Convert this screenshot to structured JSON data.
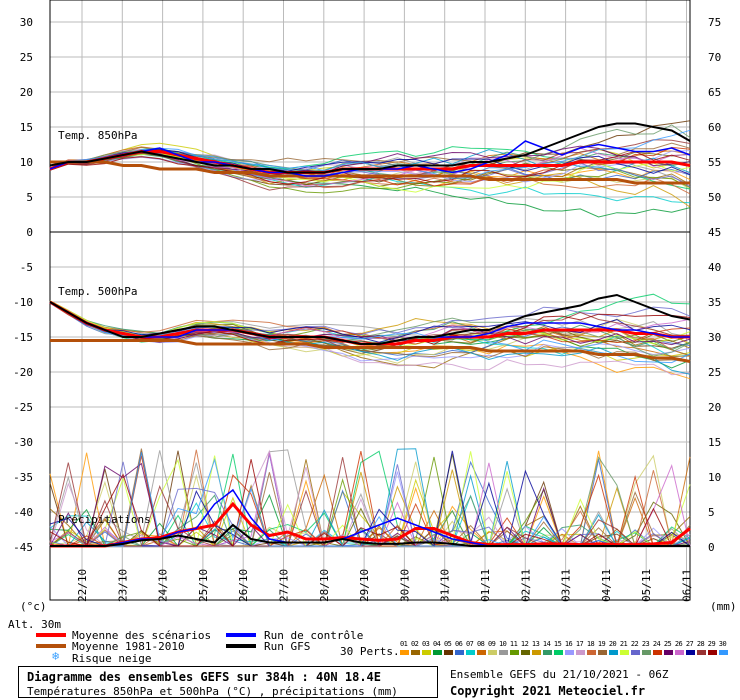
{
  "chart_data": {
    "type": "line",
    "panels": [
      {
        "title": "Temp. 850hPa",
        "series": [
          {
            "name": "Moyenne des scénarios",
            "color": "#ff0000",
            "values": [
              9,
              10,
              10,
              10.5,
              11,
              11.5,
              11.5,
              11,
              10.5,
              10,
              9.5,
              9,
              8.5,
              8.5,
              8.5,
              8.5,
              9,
              9,
              9,
              9,
              9,
              9,
              9,
              9.5,
              9.5,
              9.5,
              9.5,
              9.5,
              9.5,
              10,
              10,
              10,
              10,
              10,
              10,
              9.5
            ]
          },
          {
            "name": "Moyenne 1981-2010",
            "color": "#b4500a",
            "values": [
              10,
              10,
              10,
              10,
              9.5,
              9.5,
              9,
              9,
              9,
              8.5,
              8.5,
              8.5,
              8,
              8,
              8,
              8,
              8,
              8,
              8,
              8,
              8,
              8,
              8,
              8,
              7.5,
              7.5,
              7.5,
              7.5,
              7.5,
              7.5,
              7.5,
              7.5,
              7,
              7,
              7,
              7
            ]
          },
          {
            "name": "Run de contrôle",
            "color": "#0000ff",
            "values": [
              9,
              10,
              10,
              10.5,
              11,
              11.5,
              12,
              11,
              10,
              10,
              9.5,
              9,
              8.5,
              8.5,
              8,
              8,
              8.5,
              9,
              9,
              9,
              9.5,
              9,
              8.5,
              9,
              10,
              11,
              13,
              12,
              11,
              12,
              12.5,
              12,
              11.5,
              11.5,
              12,
              11
            ]
          },
          {
            "name": "Run GFS",
            "color": "#000000",
            "values": [
              9.5,
              10,
              10,
              10.5,
              11,
              11.5,
              11,
              10.5,
              10,
              9.5,
              9.5,
              9,
              9,
              8.5,
              8.5,
              8.5,
              9,
              9,
              9,
              9.5,
              9.5,
              9.5,
              9.5,
              10,
              10,
              10.5,
              11,
              12,
              13,
              14,
              15,
              15.5,
              15.5,
              15,
              14.5,
              13
            ]
          }
        ]
      },
      {
        "title": "Temp. 500hPa",
        "series": [
          {
            "name": "Moyenne des scénarios",
            "color": "#ff0000",
            "values": [
              -10,
              -11.5,
              -13,
              -14,
              -14.5,
              -15,
              -15,
              -14.5,
              -14,
              -14,
              -14,
              -14.5,
              -15,
              -15,
              -15,
              -15,
              -15.5,
              -16,
              -16,
              -16,
              -15.5,
              -15.5,
              -15,
              -15,
              -15,
              -14.5,
              -14.5,
              -14,
              -14,
              -14,
              -14,
              -14,
              -14.5,
              -14.5,
              -15,
              -15
            ]
          },
          {
            "name": "Moyenne 1981-2010",
            "color": "#b4500a",
            "values": [
              -15.5,
              -15.5,
              -15.5,
              -15.5,
              -15.5,
              -15.5,
              -15.5,
              -15.5,
              -16,
              -16,
              -16,
              -16,
              -16,
              -16,
              -16,
              -16.5,
              -16.5,
              -16.5,
              -16.5,
              -16.5,
              -16.5,
              -16.5,
              -16.5,
              -16.5,
              -17,
              -17,
              -17,
              -17,
              -17,
              -17,
              -17.5,
              -17.5,
              -17.5,
              -18,
              -18,
              -18.5
            ]
          },
          {
            "name": "Run de contrôle",
            "color": "#0000ff",
            "values": [
              -10,
              -11.5,
              -13,
              -14,
              -15,
              -15,
              -15,
              -15,
              -14,
              -14,
              -14,
              -14.5,
              -15,
              -15,
              -15,
              -15,
              -15.5,
              -16,
              -16,
              -15.5,
              -15,
              -15,
              -15,
              -15,
              -14.5,
              -13.5,
              -13,
              -13,
              -13,
              -13,
              -13.5,
              -14,
              -14,
              -14.5,
              -15,
              -15
            ]
          },
          {
            "name": "Run GFS",
            "color": "#000000",
            "values": [
              -10,
              -11.5,
              -13,
              -14,
              -15,
              -15,
              -14.5,
              -14,
              -13.5,
              -13.5,
              -14,
              -14.5,
              -15,
              -15,
              -15,
              -15,
              -15.5,
              -16,
              -16,
              -15.5,
              -15,
              -15,
              -14.5,
              -14,
              -14,
              -13,
              -12,
              -11.5,
              -11,
              -10.5,
              -9.5,
              -9,
              -10,
              -11,
              -12,
              -12.5
            ]
          }
        ]
      },
      {
        "title": "Précipitations",
        "series": [
          {
            "name": "Moyenne des scénarios",
            "color": "#ff0000",
            "values": [
              0,
              0,
              0,
              0,
              0.5,
              1,
              1.2,
              2,
              2.5,
              3,
              6,
              3,
              1.5,
              2,
              1,
              1,
              1.2,
              1,
              0.8,
              1,
              2.5,
              2.5,
              1.5,
              0.5,
              0.2,
              0.2,
              0.2,
              0.3,
              0.3,
              0.2,
              0.3,
              0.2,
              0.2,
              0.3,
              0.5,
              2.5
            ]
          },
          {
            "name": "Run de contrôle",
            "color": "#0000ff",
            "values": [
              0,
              0,
              0,
              0,
              0.5,
              1,
              1,
              2,
              2.5,
              6,
              8,
              4,
              1,
              0.5,
              0.5,
              0.5,
              1,
              2,
              3,
              4,
              3,
              2,
              1,
              0.5,
              0,
              0,
              0,
              0,
              0,
              0,
              0,
              0,
              0,
              0,
              0,
              0
            ]
          },
          {
            "name": "Run GFS",
            "color": "#000000",
            "values": [
              0,
              0,
              0,
              0,
              0.3,
              0.8,
              1,
              1.5,
              1,
              0.5,
              3,
              1,
              0.5,
              0.5,
              0.5,
              0.5,
              1,
              0.5,
              0.3,
              0.3,
              0.5,
              0.5,
              0.3,
              0,
              0,
              0,
              0,
              0,
              0,
              0,
              0,
              0,
              0,
              0,
              0,
              0
            ]
          }
        ]
      }
    ],
    "categories": [
      "22/10",
      "23/10",
      "24/10",
      "25/10",
      "26/10",
      "27/10",
      "28/10",
      "29/10",
      "30/10",
      "31/10",
      "01/11",
      "02/11",
      "03/11",
      "04/11",
      "05/11",
      "06/11"
    ],
    "y_left_ticks": [
      "30",
      "25",
      "20",
      "15",
      "10",
      "5",
      "0",
      "-5",
      "-10",
      "-15",
      "-20",
      "-25",
      "-30",
      "-35",
      "-40",
      "-45"
    ],
    "y_right_ticks": [
      "75",
      "70",
      "65",
      "60",
      "55",
      "50",
      "45",
      "40",
      "35",
      "30",
      "25",
      "20",
      "15",
      "10",
      "5",
      "0"
    ],
    "ylabel_left": "(°c)",
    "ylabel_right": "(mm)",
    "ylim": [
      -45,
      30
    ],
    "grid": true
  },
  "header": {
    "altitude": "Alt. 30m"
  },
  "legend": {
    "scenario_mean": "Moyenne des scénarios",
    "climate_mean": "Moyenne 1981-2010",
    "snow_risk": "Risque neige",
    "control_run": "Run de contrôle",
    "gfs_run": "Run GFS",
    "perts_label": "30 Perts.",
    "perts_numbers": "01 02 03 04 05 06 07 08 09 10 11 12 13 14 15 16 17 18 19 20 21 22 23 24 25 26 27 28 29 30",
    "perts_colors": [
      "#ff9900",
      "#996600",
      "#cccc00",
      "#009933",
      "#663300",
      "#3366cc",
      "#00cccc",
      "#cc6600",
      "#cccc66",
      "#999999",
      "#669900",
      "#666600",
      "#cc9900",
      "#339966",
      "#00cc66",
      "#9999ff",
      "#cc99cc",
      "#cc6633",
      "#996633",
      "#0099cc",
      "#ccff33",
      "#6666cc",
      "#669966",
      "#cc3300",
      "#660066",
      "#cc66cc",
      "#000099",
      "#993333",
      "#990000",
      "#3399ff"
    ],
    "colors": {
      "scenario_mean": "#ff0000",
      "climate_mean": "#b4500a",
      "control_run": "#0000ff",
      "gfs_run": "#000000",
      "snow": "#3aa0ff"
    }
  },
  "footer": {
    "title": "Diagramme des ensembles GEFS sur 384h : 40N 18.4E",
    "subtitle": "Températures 850hPa et 500hPa (°C) , précipitations (mm)",
    "run_info": "Ensemble GEFS du 21/10/2021 - 06Z",
    "copyright": "Copyright 2021 Meteociel.fr"
  }
}
